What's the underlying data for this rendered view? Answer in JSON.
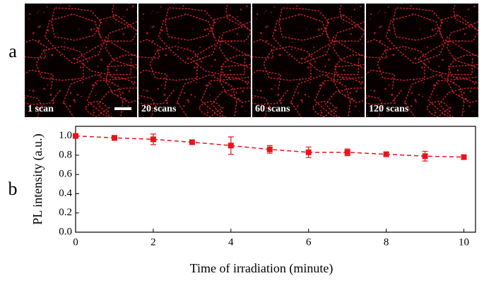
{
  "panels": {
    "a": "a",
    "b": "b"
  },
  "images": [
    {
      "caption": "1 scan"
    },
    {
      "caption": "20 scans"
    },
    {
      "caption": "60 scans"
    },
    {
      "caption": "120 scans"
    }
  ],
  "chart_data": {
    "type": "line",
    "xlabel": "Time of irradiation (minute)",
    "ylabel": "PL intensity (a.u.)",
    "x": [
      0,
      1,
      2,
      3,
      4,
      5,
      6,
      7,
      8,
      9,
      10
    ],
    "series": [
      {
        "color": "#e8141b",
        "values": [
          1.0,
          0.98,
          0.965,
          0.935,
          0.9,
          0.86,
          0.83,
          0.83,
          0.81,
          0.79,
          0.78
        ],
        "errors": [
          0.015,
          0.025,
          0.055,
          0.025,
          0.09,
          0.04,
          0.055,
          0.035,
          0.015,
          0.05,
          0.015
        ]
      }
    ],
    "xlim": [
      0,
      10.3
    ],
    "ylim": [
      0,
      1.1
    ],
    "xticks": [
      0,
      2,
      4,
      6,
      8,
      10
    ],
    "yticks": [
      {
        "value": 0,
        "label": "0.0"
      },
      {
        "value": 0.2,
        "label": "0.2"
      },
      {
        "value": 0.4,
        "label": "0.4"
      },
      {
        "value": 0.6,
        "label": "0.6"
      },
      {
        "value": 0.8,
        "label": "0.8"
      },
      {
        "value": 1.0,
        "label": "1.0"
      }
    ]
  }
}
